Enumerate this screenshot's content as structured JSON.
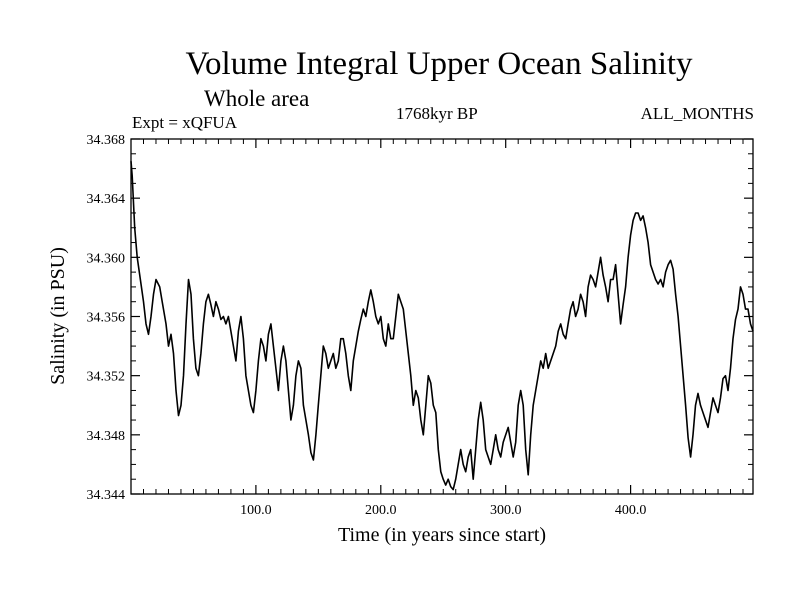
{
  "chart_data": {
    "type": "line",
    "title": "Volume Integral Upper Ocean Salinity",
    "subtitle": "Whole area",
    "experiment": "Expt = xQFUA",
    "period": "1768kyr BP",
    "months": "ALL_MONTHS",
    "xlabel": "Time (in years since start)",
    "ylabel": "Salinity (in PSU)",
    "xlim": [
      0,
      498
    ],
    "ylim": [
      34.344,
      34.368
    ],
    "xticks": [
      100,
      200,
      300,
      400
    ],
    "xtick_labels": [
      "100.0",
      "200.0",
      "300.0",
      "400.0"
    ],
    "yticks": [
      34.344,
      34.348,
      34.352,
      34.356,
      34.36,
      34.364,
      34.368
    ],
    "ytick_labels": [
      "34.344",
      "34.348",
      "34.352",
      "34.356",
      "34.360",
      "34.364",
      "34.368"
    ],
    "series": [
      {
        "name": "Salinity",
        "x": [
          0,
          1,
          3,
          5,
          8,
          10,
          12,
          14,
          16,
          18,
          20,
          23,
          25,
          28,
          30,
          32,
          34,
          36,
          38,
          40,
          42,
          44,
          46,
          48,
          50,
          52,
          54,
          56,
          58,
          60,
          62,
          64,
          66,
          68,
          70,
          72,
          74,
          76,
          78,
          80,
          82,
          84,
          86,
          88,
          90,
          92,
          94,
          96,
          98,
          100,
          102,
          104,
          106,
          108,
          110,
          112,
          114,
          116,
          118,
          120,
          122,
          124,
          126,
          128,
          130,
          132,
          134,
          136,
          138,
          140,
          142,
          144,
          146,
          148,
          150,
          152,
          154,
          156,
          158,
          160,
          162,
          164,
          166,
          168,
          170,
          172,
          174,
          176,
          178,
          180,
          182,
          184,
          186,
          188,
          190,
          192,
          194,
          196,
          198,
          200,
          202,
          204,
          206,
          208,
          210,
          212,
          214,
          216,
          218,
          220,
          222,
          224,
          226,
          228,
          230,
          232,
          234,
          236,
          238,
          240,
          242,
          244,
          246,
          248,
          250,
          252,
          254,
          256,
          258,
          260,
          262,
          264,
          266,
          268,
          270,
          272,
          274,
          276,
          278,
          280,
          282,
          284,
          286,
          288,
          290,
          292,
          294,
          296,
          298,
          300,
          302,
          304,
          306,
          308,
          310,
          312,
          314,
          316,
          318,
          320,
          322,
          324,
          326,
          328,
          330,
          332,
          334,
          336,
          338,
          340,
          342,
          344,
          346,
          348,
          350,
          352,
          354,
          356,
          358,
          360,
          362,
          364,
          366,
          368,
          370,
          372,
          374,
          376,
          378,
          380,
          382,
          384,
          386,
          388,
          390,
          392,
          394,
          396,
          398,
          400,
          402,
          404,
          406,
          408,
          410,
          412,
          414,
          416,
          418,
          420,
          422,
          424,
          426,
          428,
          430,
          432,
          434,
          436,
          438,
          440,
          442,
          444,
          446,
          448,
          450,
          452,
          454,
          456,
          458,
          460,
          462,
          464,
          466,
          468,
          470,
          472,
          474,
          476,
          478,
          480,
          482,
          484,
          486,
          488,
          490,
          492,
          494,
          496,
          498
        ],
        "y": [
          34.3665,
          34.3655,
          34.362,
          34.36,
          34.3582,
          34.357,
          34.3555,
          34.3548,
          34.356,
          34.3575,
          34.3585,
          34.358,
          34.357,
          34.3555,
          34.354,
          34.3548,
          34.3535,
          34.351,
          34.3493,
          34.35,
          34.352,
          34.3555,
          34.3585,
          34.3575,
          34.3545,
          34.3525,
          34.352,
          34.3535,
          34.3555,
          34.357,
          34.3575,
          34.3568,
          34.356,
          34.357,
          34.3565,
          34.3558,
          34.356,
          34.3555,
          34.356,
          34.355,
          34.354,
          34.353,
          34.355,
          34.356,
          34.3545,
          34.352,
          34.351,
          34.35,
          34.3495,
          34.351,
          34.353,
          34.3545,
          34.354,
          34.353,
          34.3548,
          34.3555,
          34.354,
          34.3525,
          34.351,
          34.353,
          34.354,
          34.353,
          34.351,
          34.349,
          34.35,
          34.352,
          34.353,
          34.3525,
          34.35,
          34.349,
          34.348,
          34.3468,
          34.3463,
          34.348,
          34.35,
          34.352,
          34.354,
          34.3535,
          34.3525,
          34.353,
          34.3535,
          34.3525,
          34.353,
          34.3545,
          34.3545,
          34.3535,
          34.352,
          34.351,
          34.353,
          34.354,
          34.355,
          34.3558,
          34.3565,
          34.356,
          34.357,
          34.3578,
          34.357,
          34.356,
          34.3555,
          34.356,
          34.3545,
          34.354,
          34.3555,
          34.3545,
          34.3545,
          34.356,
          34.3575,
          34.357,
          34.3565,
          34.355,
          34.3535,
          34.352,
          34.35,
          34.351,
          34.3505,
          34.349,
          34.348,
          34.35,
          34.352,
          34.3515,
          34.35,
          34.3495,
          34.347,
          34.3455,
          34.345,
          34.3446,
          34.345,
          34.3445,
          34.3443,
          34.345,
          34.346,
          34.347,
          34.346,
          34.3455,
          34.3465,
          34.347,
          34.345,
          34.347,
          34.349,
          34.3502,
          34.349,
          34.347,
          34.3465,
          34.346,
          34.347,
          34.348,
          34.347,
          34.3465,
          34.3475,
          34.348,
          34.3485,
          34.3475,
          34.3465,
          34.3475,
          34.35,
          34.351,
          34.35,
          34.347,
          34.3453,
          34.348,
          34.35,
          34.351,
          34.352,
          34.353,
          34.3525,
          34.3535,
          34.3525,
          34.353,
          34.3535,
          34.354,
          34.355,
          34.3555,
          34.3548,
          34.3545,
          34.3555,
          34.3565,
          34.357,
          34.356,
          34.3565,
          34.3575,
          34.357,
          34.356,
          34.358,
          34.3588,
          34.3585,
          34.358,
          34.359,
          34.36,
          34.3588,
          34.358,
          34.357,
          34.3585,
          34.3585,
          34.3595,
          34.3575,
          34.3555,
          34.3568,
          34.358,
          34.36,
          34.3615,
          34.3625,
          34.363,
          34.363,
          34.3625,
          34.3628,
          34.362,
          34.361,
          34.3595,
          34.359,
          34.3585,
          34.3582,
          34.3585,
          34.358,
          34.359,
          34.3595,
          34.3598,
          34.3592,
          34.3575,
          34.356,
          34.354,
          34.352,
          34.35,
          34.3478,
          34.3465,
          34.348,
          34.35,
          34.3508,
          34.35,
          34.3495,
          34.349,
          34.3485,
          34.3495,
          34.3505,
          34.35,
          34.3495,
          34.3505,
          34.3518,
          34.352,
          34.351,
          34.3525,
          34.3545,
          34.3558,
          34.3565,
          34.358,
          34.3575,
          34.3565,
          34.3565,
          34.3555,
          34.355
        ]
      }
    ]
  }
}
